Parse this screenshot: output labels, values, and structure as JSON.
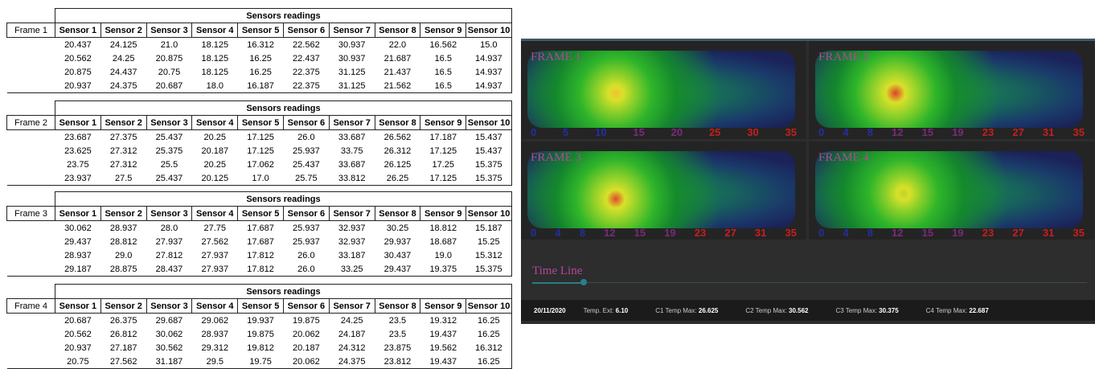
{
  "tables": [
    {
      "title": "Sensors readings",
      "frame": "Frame 1",
      "headers": [
        "Sensor 1",
        "Sensor 2",
        "Sensor 3",
        "Sensor 4",
        "Sensor 5",
        "Sensor 6",
        "Sensor 7",
        "Sensor 8",
        "Sensor 9",
        "Sensor 10"
      ],
      "rows": [
        [
          "20.437",
          "24.125",
          "21.0",
          "18.125",
          "16.312",
          "22.562",
          "30.937",
          "22.0",
          "16.562",
          "15.0"
        ],
        [
          "20.562",
          "24.25",
          "20.875",
          "18.125",
          "16.25",
          "22.437",
          "30.937",
          "21.687",
          "16.5",
          "14.937"
        ],
        [
          "20.875",
          "24.437",
          "20.75",
          "18.125",
          "16.25",
          "22.375",
          "31.125",
          "21.437",
          "16.5",
          "14.937"
        ],
        [
          "20.937",
          "24.375",
          "20.687",
          "18.0",
          "16.187",
          "22.375",
          "31.125",
          "21.562",
          "16.5",
          "14.937"
        ]
      ]
    },
    {
      "title": "Sensors readings",
      "frame": "Frame 2",
      "headers": [
        "Sensor 1",
        "Sensor 2",
        "Sensor 3",
        "Sensor 4",
        "Sensor 5",
        "Sensor 6",
        "Sensor 7",
        "Sensor 8",
        "Sensor 9",
        "Sensor 10"
      ],
      "rows": [
        [
          "23.687",
          "27.375",
          "25.437",
          "20.25",
          "17.125",
          "26.0",
          "33.687",
          "26.562",
          "17.187",
          "15.437"
        ],
        [
          "23.625",
          "27.312",
          "25.375",
          "20.187",
          "17.125",
          "25.937",
          "33.75",
          "26.312",
          "17.125",
          "15.437"
        ],
        [
          "23.75",
          "27.312",
          "25.5",
          "20.25",
          "17.062",
          "25.437",
          "33.687",
          "26.125",
          "17.25",
          "15.375"
        ],
        [
          "23.937",
          "27.5",
          "25.437",
          "20.125",
          "17.0",
          "25.75",
          "33.812",
          "26.25",
          "17.125",
          "15.375"
        ]
      ]
    },
    {
      "title": "Sensors readings",
      "frame": "Frame 3",
      "headers": [
        "Sensor 1",
        "Sensor 2",
        "Sensor 3",
        "Sensor 4",
        "Sensor 5",
        "Sensor 6",
        "Sensor 7",
        "Sensor 8",
        "Sensor 9",
        "Sensor 10"
      ],
      "rows": [
        [
          "30.062",
          "28.937",
          "28.0",
          "27.75",
          "17.687",
          "25.937",
          "32.937",
          "30.25",
          "18.812",
          "15.187"
        ],
        [
          "29.437",
          "28.812",
          "27.937",
          "27.562",
          "17.687",
          "25.937",
          "32.937",
          "29.937",
          "18.687",
          "15.25"
        ],
        [
          "28.937",
          "29.0",
          "27.812",
          "27.937",
          "17.812",
          "26.0",
          "33.187",
          "30.437",
          "19.0",
          "15.312"
        ],
        [
          "29.187",
          "28.875",
          "28.437",
          "27.937",
          "17.812",
          "26.0",
          "33.25",
          "29.437",
          "19.375",
          "15.375"
        ]
      ]
    },
    {
      "title": "Sensors readings",
      "frame": "Frame 4",
      "headers": [
        "Sensor 1",
        "Sensor 2",
        "Sensor 3",
        "Sensor 4",
        "Sensor 5",
        "Sensor 6",
        "Sensor 7",
        "Sensor 8",
        "Sensor 9",
        "Sensor 10"
      ],
      "rows": [
        [
          "20.687",
          "26.375",
          "29.687",
          "29.062",
          "19.937",
          "19.875",
          "24.25",
          "23.5",
          "19.312",
          "16.25"
        ],
        [
          "20.562",
          "26.812",
          "30.062",
          "28.937",
          "19.875",
          "20.062",
          "24.187",
          "23.5",
          "19.437",
          "16.25"
        ],
        [
          "20.937",
          "27.187",
          "30.562",
          "29.312",
          "19.812",
          "20.187",
          "24.312",
          "23.875",
          "19.562",
          "16.312"
        ],
        [
          "20.75",
          "27.562",
          "31.187",
          "29.5",
          "19.75",
          "20.062",
          "24.375",
          "23.812",
          "19.437",
          "16.25"
        ]
      ]
    }
  ],
  "viewer": {
    "frames": [
      {
        "label": "FRAME 1",
        "scale": [
          "0",
          "5",
          "10",
          "15",
          "20",
          "25",
          "30",
          "35"
        ]
      },
      {
        "label": "FRAME 2",
        "scale": [
          "0",
          "4",
          "8",
          "12",
          "15",
          "19",
          "23",
          "27",
          "31",
          "35"
        ]
      },
      {
        "label": "FRAME 3",
        "scale": [
          "0",
          "4",
          "8",
          "12",
          "15",
          "19",
          "23",
          "27",
          "31",
          "35"
        ]
      },
      {
        "label": "FRAME 4",
        "scale": [
          "0",
          "4",
          "8",
          "12",
          "15",
          "19",
          "23",
          "27",
          "31",
          "35"
        ]
      }
    ],
    "timeline": "Time Line",
    "status": {
      "date": "20/11/2020",
      "items": [
        {
          "label": "Temp. Ext:",
          "value": "6.10"
        },
        {
          "label": "C1 Temp Max:",
          "value": "26.625"
        },
        {
          "label": "C2 Temp Max:",
          "value": "30.562"
        },
        {
          "label": "C3 Temp Max:",
          "value": "30.375"
        },
        {
          "label": "C4 Temp Max:",
          "value": "22.687"
        }
      ]
    }
  }
}
